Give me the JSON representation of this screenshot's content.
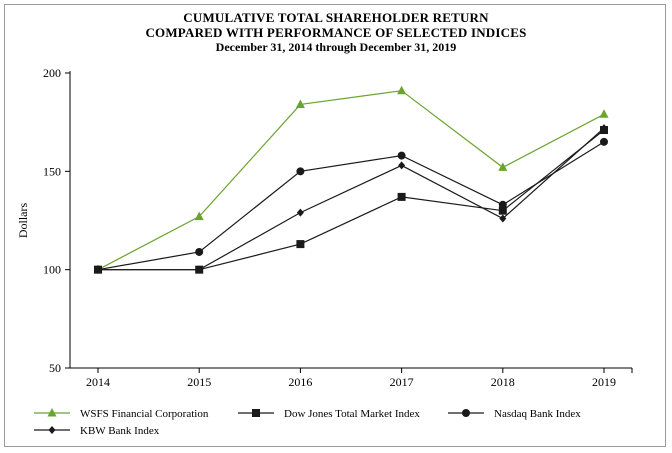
{
  "titles": {
    "line1": "CUMULATIVE TOTAL SHAREHOLDER RETURN",
    "line2": "COMPARED WITH PERFORMANCE OF SELECTED INDICES",
    "line3": "December 31, 2014 through December 31, 2019"
  },
  "chart_data": {
    "type": "line",
    "title": "CUMULATIVE TOTAL SHAREHOLDER RETURN COMPARED WITH PERFORMANCE OF SELECTED INDICES",
    "subtitle": "December 31, 2014 through December 31, 2019",
    "xlabel": "",
    "ylabel": "Dollars",
    "x": [
      "2014",
      "2015",
      "2016",
      "2017",
      "2018",
      "2019"
    ],
    "ylim": [
      50,
      200
    ],
    "yticks": [
      50,
      100,
      150,
      200
    ],
    "grid": false,
    "legend_position": "bottom",
    "series": [
      {
        "name": "WSFS Financial Corporation",
        "values": [
          100,
          127,
          184,
          191,
          152,
          179
        ],
        "color": "#6aa32e",
        "marker": "triangle"
      },
      {
        "name": "Dow Jones Total Market Index",
        "values": [
          100,
          100,
          113,
          137,
          130,
          171
        ],
        "color": "#1a1a1a",
        "marker": "square"
      },
      {
        "name": "Nasdaq Bank Index",
        "values": [
          100,
          109,
          150,
          158,
          133,
          165
        ],
        "color": "#1a1a1a",
        "marker": "circle"
      },
      {
        "name": "KBW Bank Index",
        "values": [
          100,
          100,
          129,
          153,
          126,
          172
        ],
        "color": "#1a1a1a",
        "marker": "diamond"
      }
    ]
  }
}
